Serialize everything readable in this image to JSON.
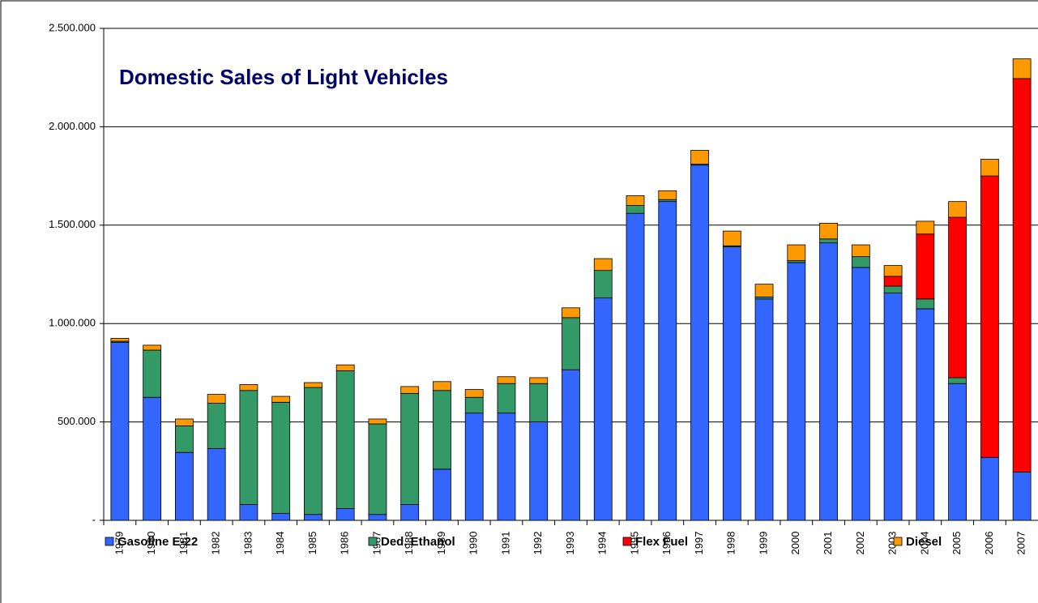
{
  "chart_data": {
    "type": "bar",
    "stacked": true,
    "title": "Domestic Sales of Light Vehicles",
    "categories": [
      "1979",
      "1980",
      "1981",
      "1982",
      "1983",
      "1984",
      "1985",
      "1986",
      "1987",
      "1988",
      "1989",
      "1990",
      "1991",
      "1992",
      "1993",
      "1994",
      "1995",
      "1996",
      "1997",
      "1998",
      "1999",
      "2000",
      "2001",
      "2002",
      "2003",
      "2004",
      "2005",
      "2006",
      "2007"
    ],
    "series": [
      {
        "name": "Gasoline E-22",
        "color": "#3366ff",
        "values": [
          905000,
          625000,
          345000,
          365000,
          80000,
          35000,
          30000,
          60000,
          30000,
          80000,
          260000,
          545000,
          545000,
          500000,
          765000,
          1130000,
          1560000,
          1620000,
          1805000,
          1390000,
          1125000,
          1310000,
          1410000,
          1285000,
          1155000,
          1075000,
          695000,
          320000,
          245000
        ]
      },
      {
        "name": "Ded. Ethanol",
        "color": "#339966",
        "values": [
          5000,
          240000,
          135000,
          230000,
          580000,
          565000,
          645000,
          700000,
          460000,
          565000,
          400000,
          80000,
          150000,
          195000,
          265000,
          140000,
          40000,
          10000,
          5000,
          5000,
          10000,
          10000,
          20000,
          55000,
          35000,
          50000,
          30000,
          0,
          0
        ]
      },
      {
        "name": "Flex Fuel",
        "color": "#ff0000",
        "values": [
          0,
          0,
          0,
          0,
          0,
          0,
          0,
          0,
          0,
          0,
          0,
          0,
          0,
          0,
          0,
          0,
          0,
          0,
          0,
          0,
          0,
          0,
          0,
          0,
          50000,
          330000,
          815000,
          1430000,
          2000000
        ]
      },
      {
        "name": "Diesel",
        "color": "#ff9900",
        "values": [
          15000,
          25000,
          35000,
          45000,
          30000,
          30000,
          25000,
          30000,
          25000,
          35000,
          45000,
          40000,
          35000,
          30000,
          50000,
          60000,
          50000,
          45000,
          70000,
          75000,
          65000,
          80000,
          80000,
          60000,
          55000,
          65000,
          80000,
          85000,
          100000
        ]
      }
    ],
    "ylim": [
      0,
      2500000
    ],
    "yticks": [
      {
        "value": 0,
        "label": "-"
      },
      {
        "value": 500000,
        "label": "500.000"
      },
      {
        "value": 1000000,
        "label": "1.000.000"
      },
      {
        "value": 1500000,
        "label": "1.500.000"
      },
      {
        "value": 2000000,
        "label": "2.000.000"
      },
      {
        "value": 2500000,
        "label": "2.500.000"
      }
    ],
    "grid": true,
    "legend": "bottom"
  }
}
